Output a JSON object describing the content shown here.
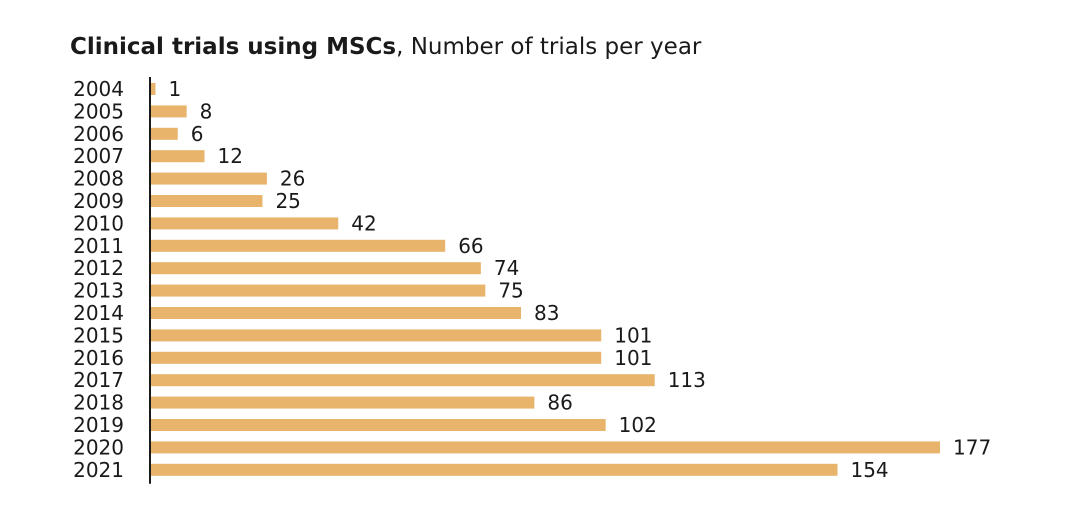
{
  "chart_data": {
    "type": "bar",
    "orientation": "horizontal",
    "title_bold": "Clinical trials using MSCs",
    "title_rest": ", Number of trials per year",
    "categories": [
      "2004",
      "2005",
      "2006",
      "2007",
      "2008",
      "2009",
      "2010",
      "2011",
      "2012",
      "2013",
      "2014",
      "2015",
      "2016",
      "2017",
      "2018",
      "2019",
      "2020",
      "2021"
    ],
    "values": [
      1,
      8,
      6,
      12,
      26,
      25,
      42,
      66,
      74,
      75,
      83,
      101,
      101,
      113,
      86,
      102,
      177,
      154
    ],
    "data_labels": [
      "1",
      "8",
      "6",
      "12",
      "26",
      "25",
      "42",
      "66",
      "74",
      "75",
      "83",
      "101",
      "101",
      "113",
      "86",
      "102",
      "177",
      "154"
    ],
    "xlim": [
      0,
      177
    ],
    "grid": false,
    "bar_color": "#e8b36b",
    "axis_color": "#1a1a1a"
  }
}
